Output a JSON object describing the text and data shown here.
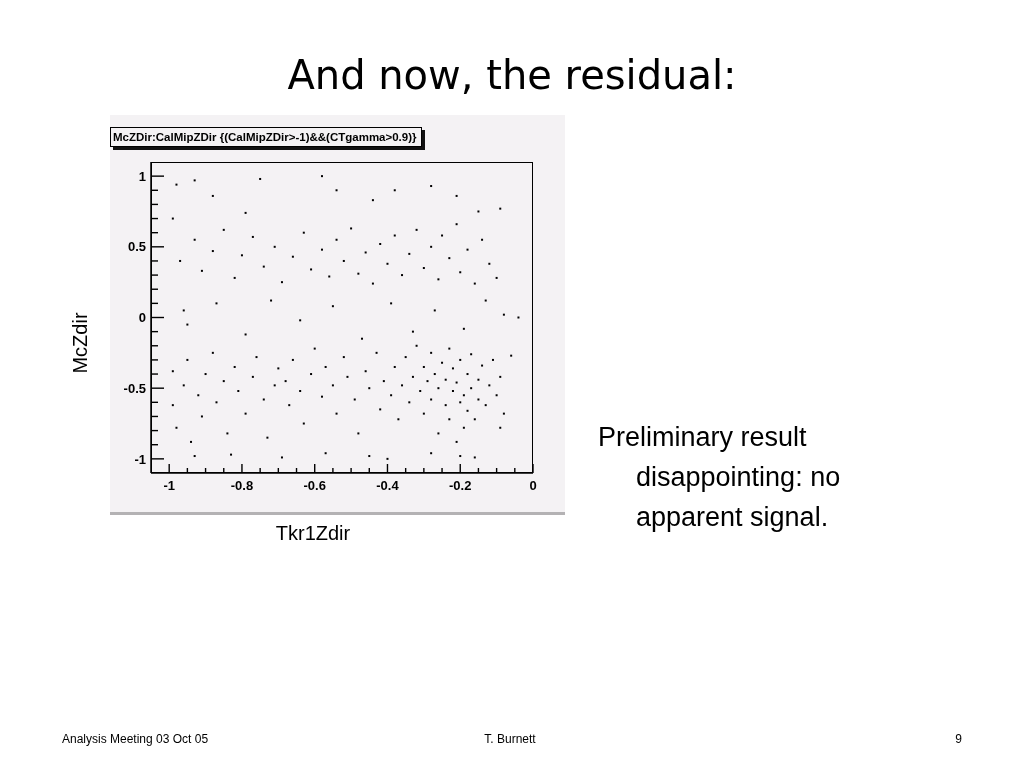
{
  "chart_data": {
    "type": "scatter",
    "title": "And now, the residual:",
    "subtitle": "McZDir:CalMipZDir {(CalMipZDir>-1)&&(CTgamma>0.9)}",
    "xlabel": "Tkr1Zdir",
    "ylabel": "McZdir",
    "annotations": [
      "Preliminary result disappointing: no apparent signal.",
      "Analysis Meeting 03 Oct 05",
      "T. Burnett",
      "9"
    ],
    "xlim": [
      -1.05,
      0
    ],
    "ylim": [
      -1.1,
      1.1
    ],
    "xticks": [
      -1,
      {
        "value": -0.95,
        "label": null
      },
      {
        "value": -0.9,
        "label": null
      },
      {
        "value": -0.85,
        "label": null
      },
      -0.8,
      {
        "value": -0.75,
        "label": null
      },
      {
        "value": -0.7,
        "label": null
      },
      {
        "value": -0.65,
        "label": null
      },
      -0.6,
      {
        "value": -0.55,
        "label": null
      },
      {
        "value": -0.5,
        "label": null
      },
      {
        "value": -0.45,
        "label": null
      },
      -0.4,
      {
        "value": -0.35,
        "label": null
      },
      {
        "value": -0.3,
        "label": null
      },
      {
        "value": -0.25,
        "label": null
      },
      -0.2,
      {
        "value": -0.15,
        "label": null
      },
      {
        "value": -0.1,
        "label": null
      },
      {
        "value": -0.05,
        "label": null
      },
      0
    ],
    "yticks": [
      -1,
      {
        "value": -0.9,
        "label": null
      },
      {
        "value": -0.8,
        "label": null
      },
      {
        "value": -0.7,
        "label": null
      },
      {
        "value": -0.6,
        "label": null
      },
      -0.5,
      {
        "value": -0.4,
        "label": null
      },
      {
        "value": -0.3,
        "label": null
      },
      {
        "value": -0.2,
        "label": null
      },
      {
        "value": -0.1,
        "label": null
      },
      0,
      {
        "value": 0.1,
        "label": null
      },
      {
        "value": 0.2,
        "label": null
      },
      {
        "value": 0.3,
        "label": null
      },
      {
        "value": 0.4,
        "label": null
      },
      0.5,
      {
        "value": 0.6,
        "label": null
      },
      {
        "value": 0.7,
        "label": null
      },
      {
        "value": 0.8,
        "label": null
      },
      {
        "value": 0.9,
        "label": null
      },
      1
    ],
    "marker": "square",
    "color": "#000000",
    "x": [
      -0.98,
      -0.93,
      -0.75,
      -0.58,
      -0.28,
      -0.54,
      -0.38,
      -0.21,
      -0.09,
      -0.88,
      -0.99,
      -0.79,
      -0.44,
      -0.15,
      -0.97,
      -0.93,
      -0.91,
      -0.88,
      -0.85,
      -0.82,
      -0.8,
      -0.77,
      -0.74,
      -0.71,
      -0.69,
      -0.66,
      -0.63,
      -0.61,
      -0.58,
      -0.56,
      -0.54,
      -0.52,
      -0.5,
      -0.48,
      -0.46,
      -0.44,
      -0.42,
      -0.4,
      -0.38,
      -0.36,
      -0.34,
      -0.32,
      -0.3,
      -0.28,
      -0.26,
      -0.25,
      -0.23,
      -0.21,
      -0.2,
      -0.18,
      -0.16,
      -0.14,
      -0.12,
      -0.1,
      -0.96,
      -0.95,
      -0.87,
      -0.79,
      -0.72,
      -0.64,
      -0.55,
      -0.47,
      -0.39,
      -0.33,
      -0.27,
      -0.19,
      -0.13,
      -0.08,
      -0.04,
      -0.99,
      -0.99,
      -0.98,
      -0.96,
      -0.95,
      -0.94,
      -0.92,
      -0.91,
      -0.9,
      -0.88,
      -0.87,
      -0.85,
      -0.84,
      -0.82,
      -0.81,
      -0.79,
      -0.77,
      -0.76,
      -0.74,
      -0.73,
      -0.71,
      -0.7,
      -0.68,
      -0.67,
      -0.66,
      -0.64,
      -0.63,
      -0.61,
      -0.6,
      -0.58,
      -0.57,
      -0.55,
      -0.54,
      -0.52,
      -0.51,
      -0.49,
      -0.48,
      -0.46,
      -0.45,
      -0.43,
      -0.42,
      -0.41,
      -0.39,
      -0.38,
      -0.37,
      -0.36,
      -0.35,
      -0.34,
      -0.33,
      -0.32,
      -0.31,
      -0.3,
      -0.3,
      -0.29,
      -0.28,
      -0.28,
      -0.27,
      -0.26,
      -0.26,
      -0.25,
      -0.24,
      -0.24,
      -0.23,
      -0.23,
      -0.22,
      -0.22,
      -0.21,
      -0.21,
      -0.2,
      -0.2,
      -0.19,
      -0.19,
      -0.18,
      -0.18,
      -0.17,
      -0.17,
      -0.16,
      -0.15,
      -0.15,
      -0.14,
      -0.13,
      -0.12,
      -0.11,
      -0.1,
      -0.09,
      -0.08,
      -0.06,
      -0.93,
      -0.83,
      -0.69,
      -0.57,
      -0.45,
      -0.4,
      -0.28,
      -0.2,
      -0.16,
      -0.09
    ],
    "values": [
      0.94,
      0.97,
      0.98,
      1.0,
      0.93,
      0.9,
      0.9,
      0.86,
      0.77,
      0.86,
      0.7,
      0.74,
      0.83,
      0.75,
      0.4,
      0.55,
      0.33,
      0.47,
      0.62,
      0.28,
      0.44,
      0.57,
      0.36,
      0.5,
      0.25,
      0.43,
      0.6,
      0.34,
      0.48,
      0.29,
      0.55,
      0.4,
      0.63,
      0.31,
      0.46,
      0.24,
      0.52,
      0.38,
      0.58,
      0.3,
      0.45,
      0.62,
      0.35,
      0.5,
      0.27,
      0.58,
      0.42,
      0.66,
      0.32,
      0.48,
      0.24,
      0.55,
      0.38,
      0.28,
      0.05,
      -0.05,
      0.1,
      -0.12,
      0.12,
      -0.02,
      0.08,
      -0.15,
      0.1,
      -0.1,
      0.05,
      -0.08,
      0.12,
      0.02,
      0.0,
      -0.38,
      -0.62,
      -0.78,
      -0.48,
      -0.3,
      -0.88,
      -0.55,
      -0.7,
      -0.4,
      -0.25,
      -0.6,
      -0.45,
      -0.82,
      -0.35,
      -0.52,
      -0.68,
      -0.42,
      -0.28,
      -0.58,
      -0.85,
      -0.48,
      -0.36,
      -0.45,
      -0.62,
      -0.3,
      -0.52,
      -0.75,
      -0.4,
      -0.22,
      -0.56,
      -0.35,
      -0.48,
      -0.68,
      -0.28,
      -0.42,
      -0.58,
      -0.82,
      -0.38,
      -0.5,
      -0.25,
      -0.65,
      -0.45,
      -0.55,
      -0.35,
      -0.72,
      -0.48,
      -0.28,
      -0.6,
      -0.42,
      -0.2,
      -0.52,
      -0.35,
      -0.68,
      -0.45,
      -0.25,
      -0.58,
      -0.4,
      -0.82,
      -0.5,
      -0.32,
      -0.62,
      -0.44,
      -0.22,
      -0.72,
      -0.52,
      -0.36,
      -0.88,
      -0.46,
      -0.6,
      -0.3,
      -0.55,
      -0.78,
      -0.4,
      -0.66,
      -0.26,
      -0.5,
      -0.72,
      -0.44,
      -0.58,
      -0.34,
      -0.62,
      -0.48,
      -0.3,
      -0.55,
      -0.42,
      -0.68,
      -0.27,
      -0.98,
      -0.97,
      -0.99,
      -0.96,
      -0.98,
      -1.0,
      -0.96,
      -0.98,
      -0.99,
      -0.78
    ]
  }
}
